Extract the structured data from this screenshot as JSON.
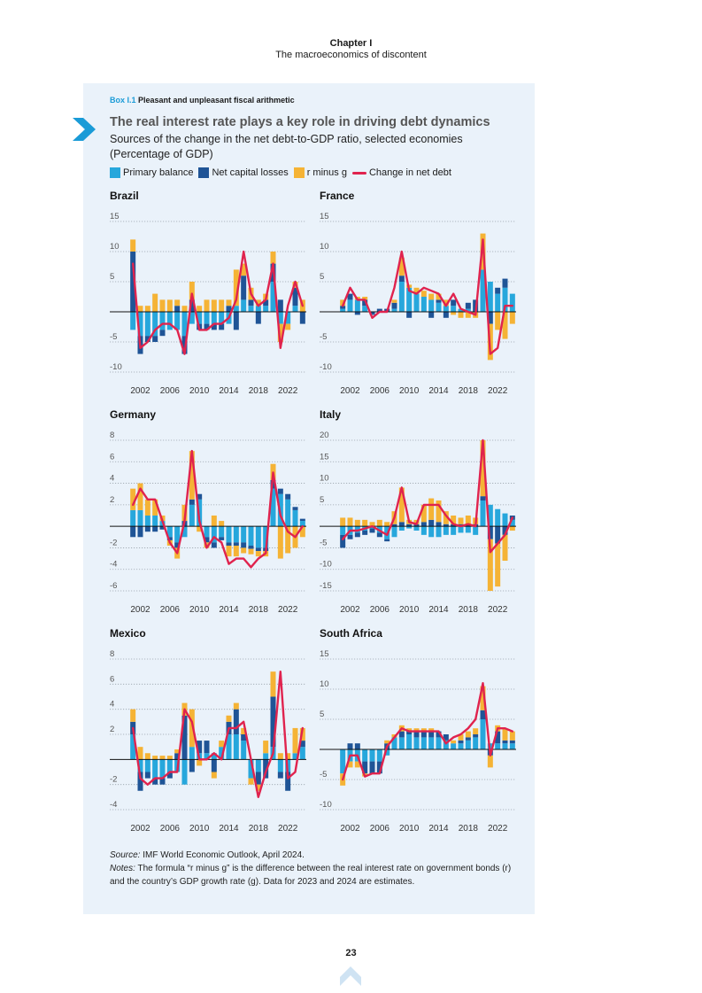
{
  "header": {
    "chapter": "Chapter I",
    "subtitle": "The macroeconomics of discontent"
  },
  "box": {
    "label_num": "Box I.1",
    "label_text": "Pleasant and unpleasant fiscal arithmetic",
    "title": "The real interest rate plays a key role in driving debt dynamics",
    "subtitle_line1": "Sources of the change in the net debt-to-GDP ratio, selected economies",
    "subtitle_line2": "(Percentage of GDP)"
  },
  "legend": {
    "primary": "Primary balance",
    "capital": "Net capital losses",
    "rminusg": "r minus g",
    "change": "Change in net debt"
  },
  "colors": {
    "primary": "#27a7dc",
    "capital": "#1f5496",
    "rminusg": "#f5b335",
    "change": "#e0234e",
    "accent": "#1a9bd7"
  },
  "chart_data": [
    {
      "type": "bar",
      "title": "Brazil",
      "ylim": [
        -10,
        15
      ],
      "yticks": [
        15,
        10,
        5,
        -5,
        -10
      ],
      "x": [
        2001,
        2002,
        2003,
        2004,
        2005,
        2006,
        2007,
        2008,
        2009,
        2010,
        2011,
        2012,
        2013,
        2014,
        2015,
        2016,
        2017,
        2018,
        2019,
        2020,
        2021,
        2022,
        2023,
        2024
      ],
      "xticks": [
        2002,
        2006,
        2010,
        2014,
        2018,
        2022
      ],
      "series": [
        {
          "name": "Primary balance",
          "values": [
            -3,
            -4,
            -4,
            -4,
            -3,
            -3,
            -3,
            -4,
            -2,
            -2,
            -2,
            -2,
            -2,
            -2,
            1,
            2,
            1,
            1,
            1,
            5,
            -2,
            -2,
            1,
            0
          ]
        },
        {
          "name": "Net capital losses",
          "values": [
            10,
            -3,
            -1,
            -1,
            -1,
            0,
            1,
            -3,
            2,
            -1,
            -1,
            -1,
            -1,
            1,
            -3,
            4,
            1,
            -2,
            1,
            3,
            2,
            0,
            3,
            -2
          ]
        },
        {
          "name": "r minus g",
          "values": [
            2,
            1,
            1,
            3,
            2,
            2,
            1,
            1,
            3,
            1,
            2,
            2,
            2,
            1,
            6,
            2,
            2,
            1,
            1,
            2,
            -3,
            -1,
            1,
            2
          ]
        },
        {
          "name": "Change in net debt",
          "values": [
            8,
            -6,
            -5,
            -3,
            -2,
            -2,
            -3,
            -7,
            3,
            -3,
            -3,
            -2,
            -2,
            -1,
            2,
            10,
            3,
            1,
            2,
            8,
            -6,
            1,
            5,
            1
          ]
        }
      ]
    },
    {
      "type": "bar",
      "title": "France",
      "ylim": [
        -10,
        15
      ],
      "yticks": [
        15,
        10,
        5,
        -5,
        -10
      ],
      "x": [
        2001,
        2002,
        2003,
        2004,
        2005,
        2006,
        2007,
        2008,
        2009,
        2010,
        2011,
        2012,
        2013,
        2014,
        2015,
        2016,
        2017,
        2018,
        2019,
        2020,
        2021,
        2022,
        2023,
        2024
      ],
      "xticks": [
        2002,
        2006,
        2010,
        2014,
        2018,
        2022
      ],
      "series": [
        {
          "name": "Primary balance",
          "values": [
            0.5,
            2,
            2,
            1,
            0,
            0,
            0,
            0.5,
            5,
            4,
            3,
            2.5,
            2,
            1.5,
            1,
            1,
            0.5,
            0.5,
            0,
            7,
            5,
            3,
            4,
            3
          ]
        },
        {
          "name": "Net capital losses",
          "values": [
            0.5,
            1,
            -0.5,
            1,
            -0.5,
            0.5,
            0.5,
            1,
            1,
            -1,
            0,
            0,
            -1,
            0.5,
            -1,
            1,
            0,
            1,
            2,
            0,
            -2,
            1,
            1.5,
            0
          ]
        },
        {
          "name": "r minus g",
          "values": [
            1,
            0,
            0.5,
            0.5,
            0,
            0,
            0,
            0.5,
            3,
            0.5,
            1,
            1,
            1,
            1,
            1,
            -0.5,
            -1,
            -1,
            -1,
            6,
            -6,
            -3,
            -4.5,
            -2
          ]
        },
        {
          "name": "Change in net debt",
          "values": [
            1,
            4,
            2,
            2,
            -1,
            0,
            0,
            4,
            10,
            3.5,
            3,
            4,
            3.5,
            3,
            1,
            3,
            0.5,
            0,
            -0.5,
            12,
            -7,
            -6,
            1,
            1
          ]
        }
      ]
    },
    {
      "type": "bar",
      "title": "Germany",
      "ylim": [
        -6,
        8
      ],
      "yticks": [
        8,
        6,
        4,
        2,
        -2,
        -4,
        -6
      ],
      "x": [
        2001,
        2002,
        2003,
        2004,
        2005,
        2006,
        2007,
        2008,
        2009,
        2010,
        2011,
        2012,
        2013,
        2014,
        2015,
        2016,
        2017,
        2018,
        2019,
        2020,
        2021,
        2022,
        2023,
        2024
      ],
      "xticks": [
        2002,
        2006,
        2010,
        2014,
        2018,
        2022
      ],
      "series": [
        {
          "name": "Primary balance",
          "values": [
            1.5,
            1.5,
            1,
            1,
            0.5,
            -1,
            -1.5,
            -1,
            2,
            2.5,
            -1,
            -1.5,
            -1,
            -1.5,
            -1.5,
            -1.5,
            -1.8,
            -2,
            -2,
            3.5,
            3,
            2.5,
            1.5,
            0.5
          ]
        },
        {
          "name": "Net capital losses",
          "values": [
            -1,
            -1,
            -0.5,
            -0.5,
            -0.3,
            -0.3,
            -0.5,
            0.5,
            0.5,
            0.5,
            -0.5,
            -0.5,
            -0.3,
            -0.3,
            -0.3,
            -0.5,
            -0.3,
            -0.3,
            -0.3,
            0.8,
            0.5,
            0.5,
            0.3,
            0.2
          ]
        },
        {
          "name": "r minus g",
          "values": [
            2,
            2.5,
            1.5,
            1.5,
            0.5,
            -0.5,
            -1,
            1.5,
            4.5,
            -0.5,
            -0.5,
            1,
            0.5,
            -1,
            -1,
            -0.5,
            -0.5,
            -0.5,
            -0.5,
            1.5,
            -3,
            -2.5,
            -2,
            -1
          ]
        },
        {
          "name": "Change in net debt",
          "values": [
            2,
            3.5,
            2.5,
            2.5,
            0.5,
            -1.5,
            -2.5,
            0.5,
            7,
            0.5,
            -2,
            -1,
            -1.5,
            -3.5,
            -3,
            -3,
            -3.8,
            -3,
            -2.5,
            5,
            1,
            -0.5,
            -1,
            0
          ]
        }
      ]
    },
    {
      "type": "bar",
      "title": "Italy",
      "ylim": [
        -15,
        20
      ],
      "yticks": [
        20,
        15,
        10,
        5,
        -5,
        -10,
        -15
      ],
      "x": [
        2001,
        2002,
        2003,
        2004,
        2005,
        2006,
        2007,
        2008,
        2009,
        2010,
        2011,
        2012,
        2013,
        2014,
        2015,
        2016,
        2017,
        2018,
        2019,
        2020,
        2021,
        2022,
        2023,
        2024
      ],
      "xticks": [
        2002,
        2006,
        2010,
        2014,
        2018,
        2022
      ],
      "series": [
        {
          "name": "Primary balance",
          "values": [
            -2,
            -2,
            -1.5,
            -1,
            -0.5,
            -1.5,
            -3,
            -2.5,
            -1,
            -0.5,
            -1,
            -2,
            -2.5,
            -2.5,
            -2,
            -2,
            -1.5,
            -1.5,
            -2,
            6,
            5,
            4,
            3,
            1.5
          ]
        },
        {
          "name": "Net capital losses",
          "values": [
            -3,
            -1,
            -1,
            -1,
            -1,
            -1,
            -0.5,
            0.5,
            1,
            0.5,
            0.5,
            1,
            1.5,
            1,
            0.5,
            0.5,
            0.5,
            0.5,
            0.5,
            1,
            -3,
            -4,
            -2,
            1
          ]
        },
        {
          "name": "r minus g",
          "values": [
            2,
            2,
            1.5,
            1.5,
            1,
            1.5,
            1,
            3,
            8,
            1,
            1,
            4,
            5,
            5,
            3,
            2,
            1.5,
            2,
            1.5,
            13,
            -12,
            -10,
            -6,
            -1
          ]
        },
        {
          "name": "Change in net debt",
          "values": [
            -3,
            -1,
            -1,
            -0.5,
            0,
            -1,
            -2,
            2,
            9,
            1,
            0.5,
            5,
            5,
            5,
            2.5,
            0.5,
            0,
            0.5,
            0,
            20,
            -6,
            -4,
            -2,
            2
          ]
        }
      ]
    },
    {
      "type": "bar",
      "title": "Mexico",
      "ylim": [
        -4,
        8
      ],
      "yticks": [
        8,
        6,
        4,
        2,
        -2,
        -4
      ],
      "x": [
        2001,
        2002,
        2003,
        2004,
        2005,
        2006,
        2007,
        2008,
        2009,
        2010,
        2011,
        2012,
        2013,
        2014,
        2015,
        2016,
        2017,
        2018,
        2019,
        2020,
        2021,
        2022,
        2023,
        2024
      ],
      "xticks": [
        2002,
        2006,
        2010,
        2014,
        2018,
        2022
      ],
      "series": [
        {
          "name": "Primary balance",
          "values": [
            2,
            -1,
            -1,
            -1.5,
            -1.5,
            -1,
            -1,
            -2,
            1,
            0.5,
            0.5,
            0.5,
            1,
            2,
            2,
            1.5,
            -1.5,
            -1,
            0.5,
            1,
            -1,
            -1,
            0.5,
            1
          ]
        },
        {
          "name": "Net capital losses",
          "values": [
            1,
            -1.5,
            -0.5,
            -0.5,
            -0.5,
            -0.5,
            0.5,
            3.5,
            -1,
            1,
            1,
            -1,
            0,
            1,
            2,
            0.5,
            0,
            -1,
            -1.5,
            4,
            -0.5,
            -1.5,
            0,
            0.5
          ]
        },
        {
          "name": "r minus g",
          "values": [
            1,
            1,
            0.5,
            0.3,
            0.3,
            0.3,
            0.3,
            1,
            3,
            -0.5,
            0,
            -0.5,
            0.5,
            0.5,
            0.5,
            0.5,
            -0.5,
            -0.5,
            1,
            2,
            0.5,
            0.5,
            2,
            1
          ]
        },
        {
          "name": "Change in net debt",
          "values": [
            2.5,
            -1.5,
            -2,
            -1.5,
            -1.5,
            -1,
            -1,
            4,
            3,
            0,
            0,
            0.5,
            0,
            2.5,
            2.5,
            3,
            0,
            -3,
            -1,
            0.5,
            7,
            -1.5,
            -1,
            2.5
          ]
        }
      ]
    },
    {
      "type": "bar",
      "title": "South Africa",
      "ylim": [
        -10,
        15
      ],
      "yticks": [
        15,
        10,
        5,
        -5,
        -10
      ],
      "x": [
        2001,
        2002,
        2003,
        2004,
        2005,
        2006,
        2007,
        2008,
        2009,
        2010,
        2011,
        2012,
        2013,
        2014,
        2015,
        2016,
        2017,
        2018,
        2019,
        2020,
        2021,
        2022,
        2023,
        2024
      ],
      "xticks": [
        2002,
        2006,
        2010,
        2014,
        2018,
        2022
      ],
      "series": [
        {
          "name": "Primary balance",
          "values": [
            -4,
            -2,
            -2,
            -2,
            -2,
            -2,
            -1,
            2,
            2,
            2.5,
            2,
            2,
            2,
            2,
            1.5,
            1,
            1,
            1.5,
            2,
            5,
            1,
            1,
            1,
            1
          ]
        },
        {
          "name": "Net capital losses",
          "values": [
            0,
            1,
            1,
            -2,
            -2,
            -2,
            1,
            0,
            1,
            0.5,
            1,
            1,
            1,
            1,
            1,
            0,
            0.5,
            0.5,
            0.5,
            1.5,
            -1,
            2,
            0.5,
            0.5
          ]
        },
        {
          "name": "r minus g",
          "values": [
            -2,
            -1,
            -1,
            -0.5,
            0,
            0,
            0.5,
            0.5,
            1,
            0.5,
            0.5,
            0.5,
            0.5,
            0,
            0,
            0.5,
            1,
            1,
            1,
            4,
            -2,
            1,
            2,
            1.5
          ]
        },
        {
          "name": "Change in net debt",
          "values": [
            -5,
            -1,
            -1,
            -4.5,
            -4,
            -4,
            0.5,
            2,
            3.5,
            3,
            3,
            3,
            3,
            3,
            1,
            2,
            2.5,
            3.5,
            5,
            11,
            -1,
            3.5,
            3.5,
            3
          ]
        }
      ]
    }
  ],
  "footer": {
    "source_label": "Source:",
    "source_text": "IMF World Economic Outlook, April 2024.",
    "notes_label": "Notes:",
    "notes_text": "The formula “r minus g” is the difference between the real interest rate on government bonds (r) and the country’s GDP growth rate (g). Data for 2023 and 2024 are estimates."
  },
  "page_number": "23"
}
